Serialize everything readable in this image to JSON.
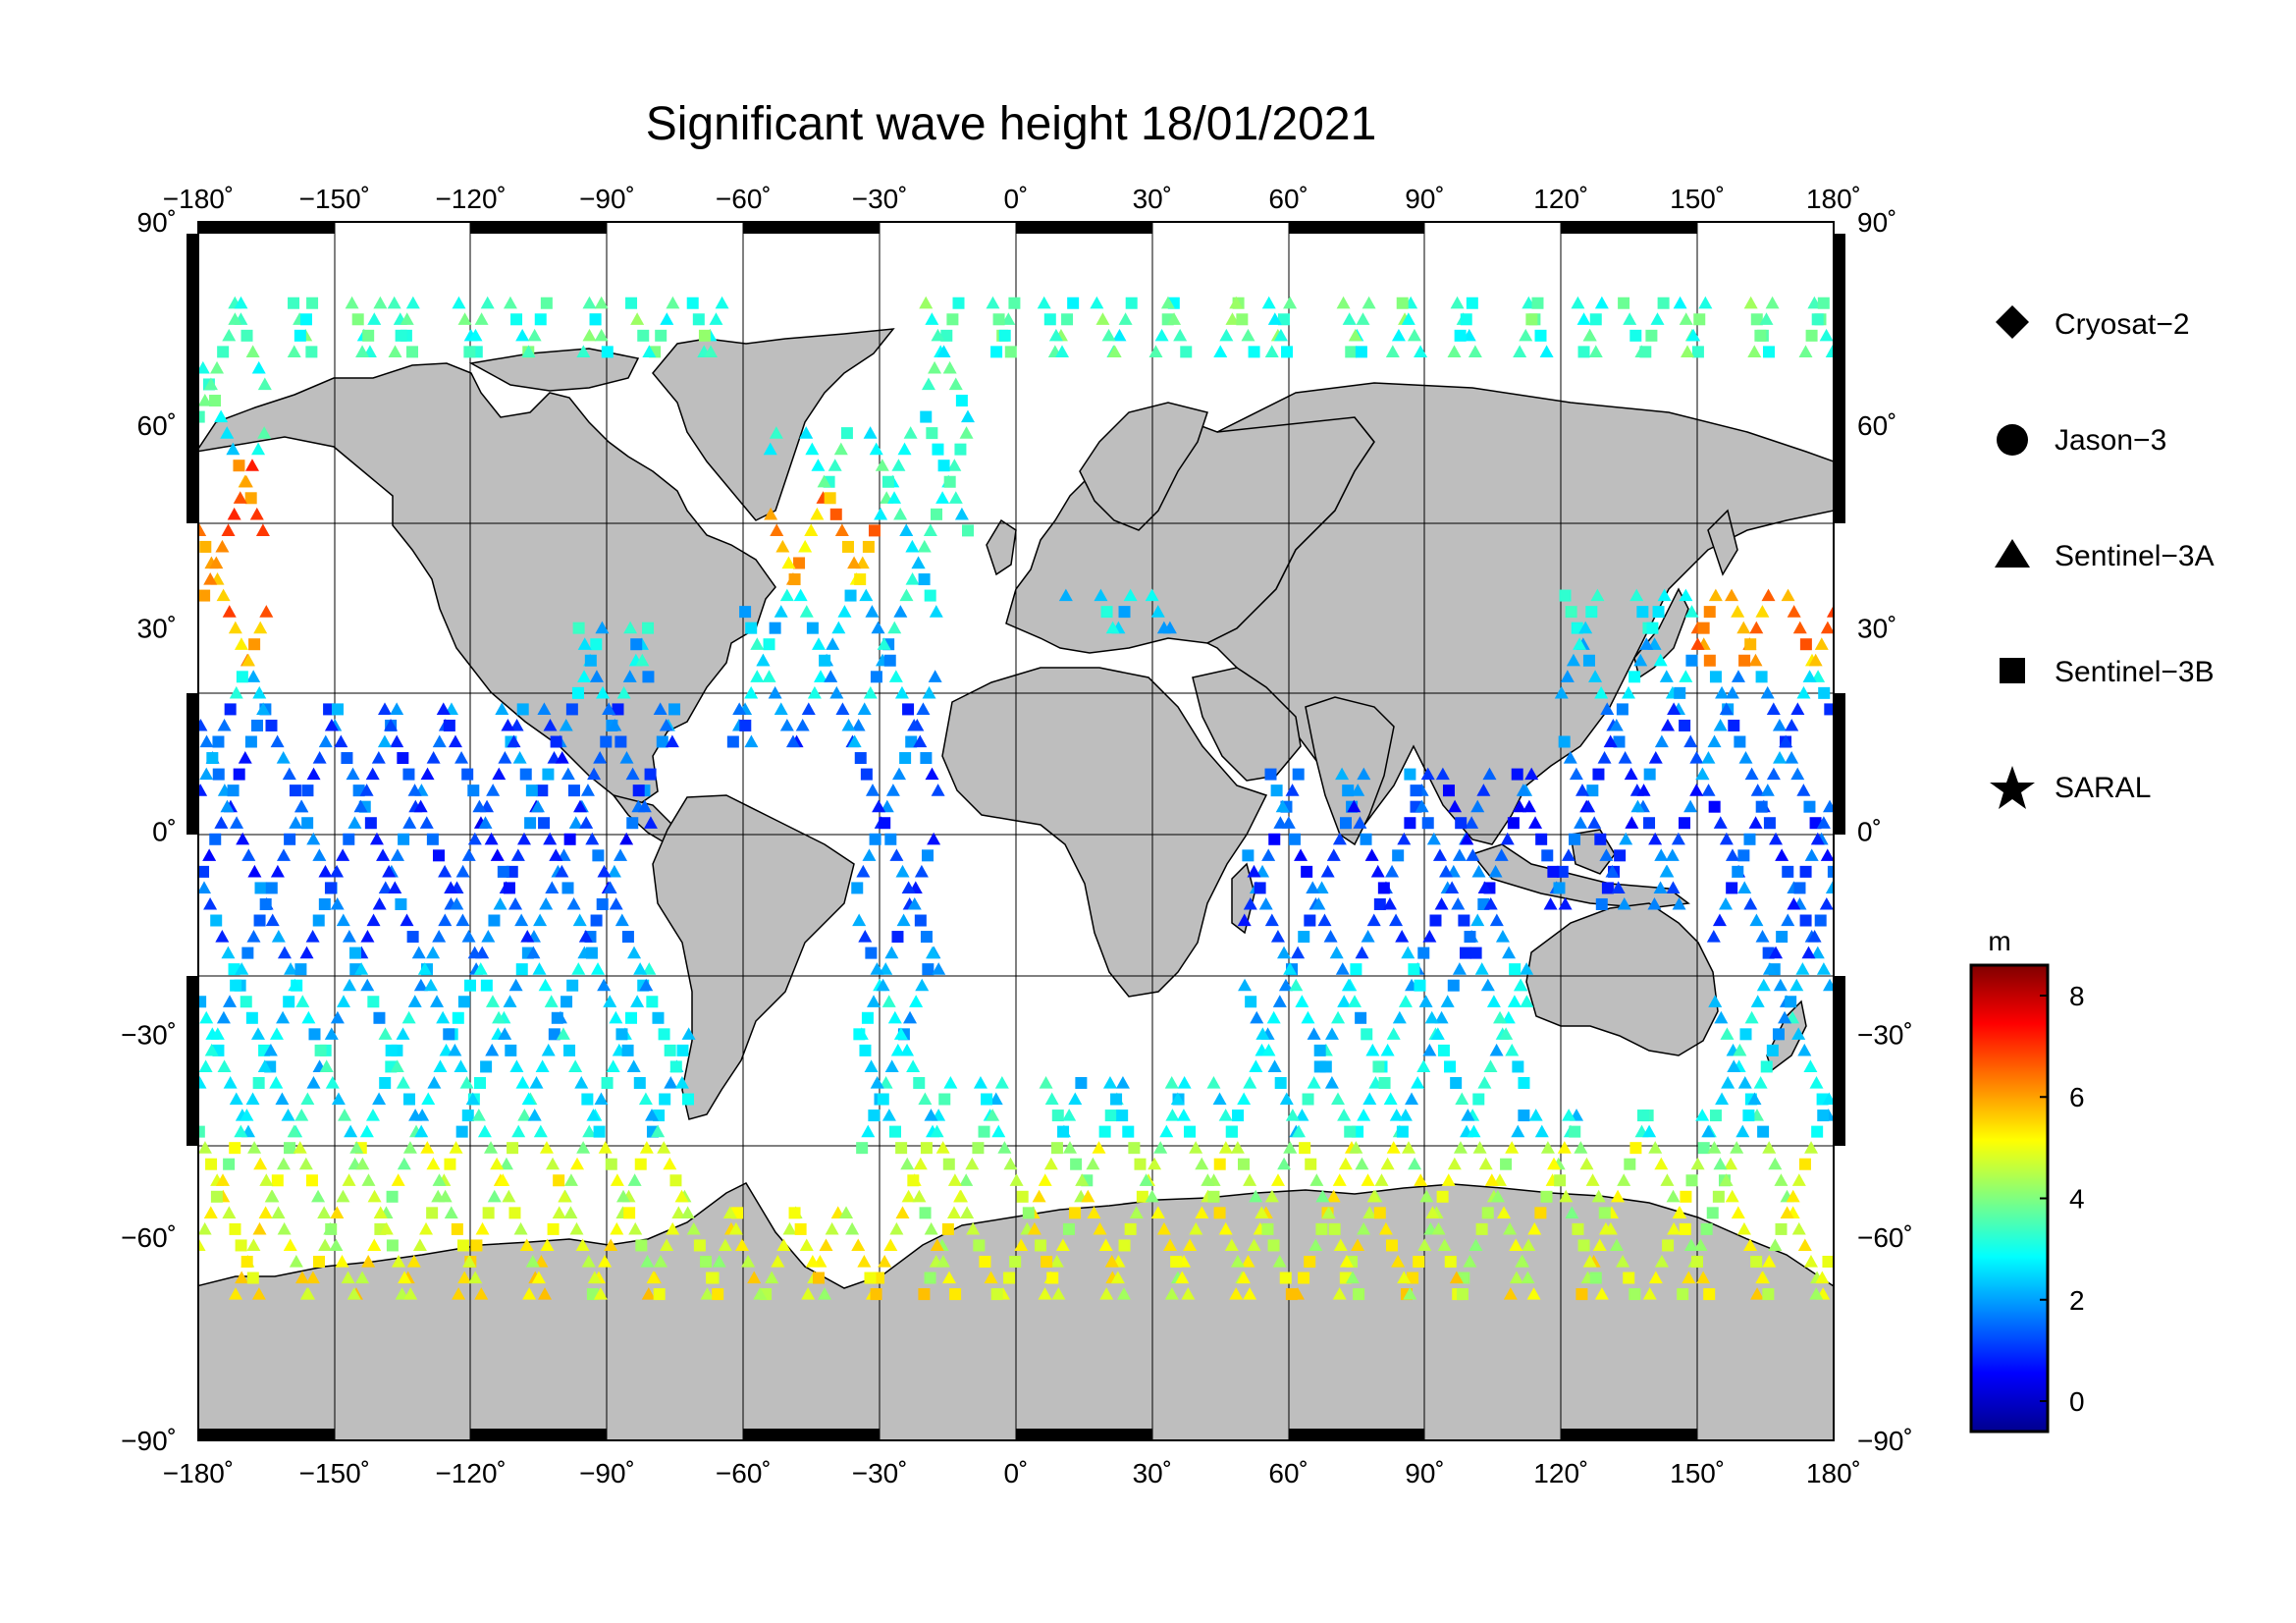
{
  "title": "Significant wave height 18/01/2021",
  "map": {
    "lon_range": [
      -180,
      180
    ],
    "lat_range": [
      -90,
      90
    ],
    "lon_ticks": [
      "−180˚",
      "−150˚",
      "−120˚",
      "−90˚",
      "−60˚",
      "−30˚",
      "0˚",
      "30˚",
      "60˚",
      "90˚",
      "120˚",
      "150˚",
      "180˚"
    ],
    "lat_ticks": [
      "90˚",
      "60˚",
      "30˚",
      "0˚",
      "−30˚",
      "−60˚",
      "−90˚"
    ],
    "land_color": "#bebebe",
    "ocean_color": "#ffffff"
  },
  "legend": {
    "items": [
      {
        "label": "Cryosat−2",
        "symbol": "diamond"
      },
      {
        "label": "Jason−3",
        "symbol": "circle"
      },
      {
        "label": "Sentinel−3A",
        "symbol": "triangle"
      },
      {
        "label": "Sentinel−3B",
        "symbol": "square"
      },
      {
        "label": "SARAL",
        "symbol": "star"
      }
    ]
  },
  "colorbar": {
    "unit": "m",
    "range": [
      -0.6,
      8.6
    ],
    "ticks": [
      "0",
      "2",
      "4",
      "6",
      "8"
    ],
    "colormap": "jet"
  }
}
